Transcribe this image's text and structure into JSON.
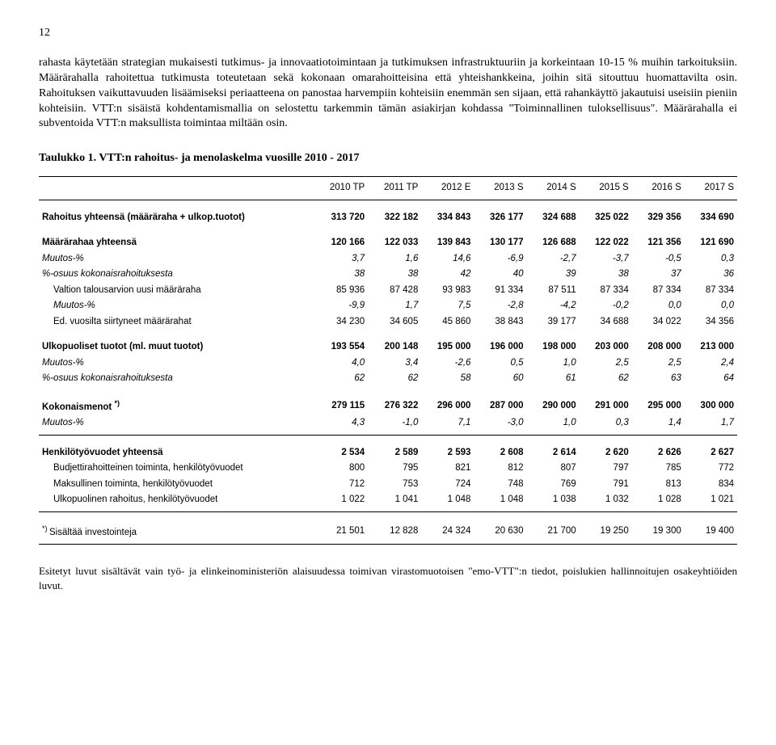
{
  "page_number": "12",
  "paragraphs": {
    "p1": "rahasta käytetään strategian mukaisesti tutkimus- ja innovaatiotoimintaan ja tutkimuksen infrastruktuuriin ja korkeintaan 10-15 % muihin tarkoituksiin. Määrärahalla rahoitettua tutkimusta toteutetaan sekä kokonaan omarahoitteisina että yhteishankkeina, joihin sitä sitouttuu huomattavilta osin. Rahoituksen vaikuttavuuden lisäämiseksi periaatteena on panostaa harvempiin kohteisiin enemmän sen sijaan, että rahankäyttö jakautuisi useisiin pieniin kohteisiin. VTT:n sisäistä kohdentamismallia on selostettu tarkemmin tämän asiakirjan kohdassa \"Toiminnallinen tuloksellisuus\". Määrärahalla ei subventoida VTT:n maksullista toimintaa miltään osin."
  },
  "table_title": "Taulukko 1. VTT:n rahoitus- ja menolaskelma vuosille 2010 - 2017",
  "columns": [
    "",
    "2010 TP",
    "2011 TP",
    "2012 E",
    "2013 S",
    "2014 S",
    "2015 S",
    "2016 S",
    "2017 S"
  ],
  "rows": {
    "rahoitus_yht": {
      "label": "Rahoitus yhteensä (määräraha + ulkop.tuotot)",
      "v": [
        "313 720",
        "322 182",
        "334 843",
        "326 177",
        "324 688",
        "325 022",
        "329 356",
        "334 690"
      ]
    },
    "maararahaa_yht": {
      "label": "Määrärahaa yhteensä",
      "v": [
        "120 166",
        "122 033",
        "139 843",
        "130 177",
        "126 688",
        "122 022",
        "121 356",
        "121 690"
      ]
    },
    "muutos1": {
      "label": "Muutos-%",
      "v": [
        "3,7",
        "1,6",
        "14,6",
        "-6,9",
        "-2,7",
        "-3,7",
        "-0,5",
        "0,3"
      ]
    },
    "osuus1": {
      "label": "%-osuus kokonaisrahoituksesta",
      "v": [
        "38",
        "38",
        "42",
        "40",
        "39",
        "38",
        "37",
        "36"
      ]
    },
    "valtion": {
      "label": "Valtion talousarvion uusi määräraha",
      "v": [
        "85 936",
        "87 428",
        "93 983",
        "91 334",
        "87 511",
        "87 334",
        "87 334",
        "87 334"
      ]
    },
    "muutos2": {
      "label": "Muutos-%",
      "v": [
        "-9,9",
        "1,7",
        "7,5",
        "-2,8",
        "-4,2",
        "-0,2",
        "0,0",
        "0,0"
      ]
    },
    "ed_vuosilta": {
      "label": "Ed. vuosilta siirtyneet määrärahat",
      "v": [
        "34 230",
        "34 605",
        "45 860",
        "38 843",
        "39 177",
        "34 688",
        "34 022",
        "34 356"
      ]
    },
    "ulkop_tuotot": {
      "label": "Ulkopuoliset tuotot (ml. muut tuotot)",
      "v": [
        "193 554",
        "200 148",
        "195 000",
        "196 000",
        "198 000",
        "203 000",
        "208 000",
        "213 000"
      ]
    },
    "muutos3": {
      "label": "Muutos-%",
      "v": [
        "4,0",
        "3,4",
        "-2,6",
        "0,5",
        "1,0",
        "2,5",
        "2,5",
        "2,4"
      ]
    },
    "osuus2": {
      "label": "%-osuus kokonaisrahoituksesta",
      "v": [
        "62",
        "62",
        "58",
        "60",
        "61",
        "62",
        "63",
        "64"
      ]
    },
    "kokmenot": {
      "label": "Kokonaismenot ",
      "sup": "*)",
      "v": [
        "279 115",
        "276 322",
        "296 000",
        "287 000",
        "290 000",
        "291 000",
        "295 000",
        "300 000"
      ]
    },
    "muutos4": {
      "label": "Muutos-%",
      "v": [
        "4,3",
        "-1,0",
        "7,1",
        "-3,0",
        "1,0",
        "0,3",
        "1,4",
        "1,7"
      ]
    },
    "htv_yht": {
      "label": "Henkilötyövuodet yhteensä",
      "v": [
        "2 534",
        "2 589",
        "2 593",
        "2 608",
        "2 614",
        "2 620",
        "2 626",
        "2 627"
      ]
    },
    "budj": {
      "label": "Budjettirahoitteinen toiminta, henkilötyövuodet",
      "v": [
        "800",
        "795",
        "821",
        "812",
        "807",
        "797",
        "785",
        "772"
      ]
    },
    "maksull": {
      "label": "Maksullinen toiminta, henkilötyövuodet",
      "v": [
        "712",
        "753",
        "724",
        "748",
        "769",
        "791",
        "813",
        "834"
      ]
    },
    "ulkop_rah": {
      "label": "Ulkopuolinen rahoitus, henkilötyövuodet",
      "v": [
        "1 022",
        "1 041",
        "1 048",
        "1 048",
        "1 038",
        "1 032",
        "1 028",
        "1 021"
      ]
    },
    "inv": {
      "label": "Sisältää investointeja",
      "sup_before": "*) ",
      "v": [
        "21 501",
        "12 828",
        "24 324",
        "20 630",
        "21 700",
        "19 250",
        "19 300",
        "19 400"
      ]
    }
  },
  "footnote": "Esitetyt luvut sisältävät vain työ- ja elinkeinoministeriön alaisuudessa toimivan virastomuotoisen \"emo-VTT\":n tiedot, poislukien hallinnoitujen osakeyhtiöiden luvut.",
  "style": {
    "body_fontsize": 14,
    "table_fontsize": 11.5,
    "text_color": "#000000",
    "background_color": "#ffffff",
    "border_color": "#000000"
  }
}
